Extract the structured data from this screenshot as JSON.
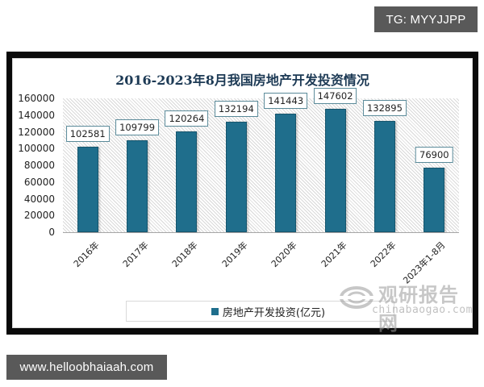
{
  "tags": {
    "top": "TG: MYYJJPP",
    "bottom": "www.helloobhaiaah.com"
  },
  "chart_data": {
    "type": "bar",
    "title": "2016-2023年8月我国房地产开发投资情况",
    "categories": [
      "2016年",
      "2017年",
      "2018年",
      "2019年",
      "2020年",
      "2021年",
      "2022年",
      "2023年1-8月"
    ],
    "series": [
      {
        "name": "房地产开发投资(亿元)",
        "values": [
          102581,
          109799,
          120264,
          132194,
          141443,
          147602,
          132895,
          76900
        ],
        "color": "#1f6e8c"
      }
    ],
    "xlabel": "",
    "ylabel": "",
    "ylim": [
      0,
      160000
    ],
    "yticks": [
      0,
      20000,
      40000,
      60000,
      80000,
      100000,
      120000,
      140000,
      160000
    ],
    "data_labels": true,
    "grid": false,
    "legend_position": "bottom",
    "plot_background": "diagonal-hatch"
  },
  "watermark": {
    "cn": "观研报告网",
    "en": "chinabaogao.com"
  }
}
